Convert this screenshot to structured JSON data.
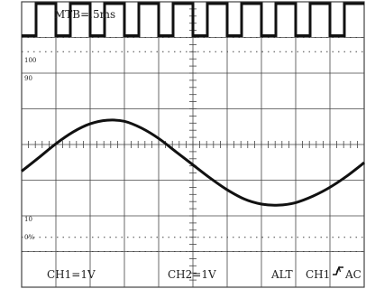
{
  "labels": {
    "timebase": "MTB=.5ms",
    "ch1_scale": "CH1=1V",
    "ch2_scale": "CH2=1V",
    "mode": "ALT",
    "trigger_source": "CH1",
    "trigger_slope_icon": "rising-edge-icon",
    "trigger_coupling": "AC"
  },
  "graticule_marks": {
    "m100": "100",
    "m90": "90",
    "m10": "10",
    "m0": "0%"
  },
  "colors": {
    "trace": "#111111",
    "grid": "#444444",
    "text": "#222222"
  },
  "chart_data": [
    {
      "type": "line",
      "name": "",
      "x": [
        0,
        0.42,
        0.42,
        1.0,
        1.0,
        1.42,
        1.42,
        2.0,
        2.0,
        2.42,
        2.42,
        3.0,
        3.0,
        3.42,
        3.42,
        4.0,
        4.0,
        4.42,
        4.42,
        5.0,
        5.0,
        5.42,
        5.42,
        6.0,
        6.0,
        6.42,
        6.42,
        7.0,
        7.0,
        7.42,
        7.42,
        8.0,
        8.0,
        8.42,
        8.42,
        9.0,
        9.0,
        9.42,
        9.42,
        10.0
      ],
      "y": [
        3.05,
        3.05,
        3.95,
        3.95,
        3.05,
        3.05,
        3.95,
        3.95,
        3.05,
        3.05,
        3.95,
        3.95,
        3.05,
        3.05,
        3.95,
        3.95,
        3.05,
        3.05,
        3.95,
        3.95,
        3.05,
        3.05,
        3.95,
        3.95,
        3.05,
        3.05,
        3.95,
        3.95,
        3.05,
        3.05,
        3.95,
        3.95,
        3.05,
        3.05,
        3.95,
        3.95,
        3.05,
        3.05,
        3.95,
        3.95
      ]
    },
    {
      "type": "line",
      "name": "",
      "x": [
        0,
        0.5,
        1.0,
        1.5,
        2.0,
        2.5,
        3.0,
        3.5,
        4.0,
        4.5,
        5.0,
        5.5,
        6.0,
        6.5,
        7.0,
        7.5,
        8.0,
        8.5,
        9.0,
        9.5,
        10.0
      ],
      "y": [
        -0.75,
        -0.37,
        0.02,
        0.35,
        0.58,
        0.68,
        0.65,
        0.46,
        0.17,
        -0.2,
        -0.57,
        -0.94,
        -1.27,
        -1.53,
        -1.67,
        -1.7,
        -1.63,
        -1.45,
        -1.2,
        -0.88,
        -0.51
      ]
    }
  ]
}
